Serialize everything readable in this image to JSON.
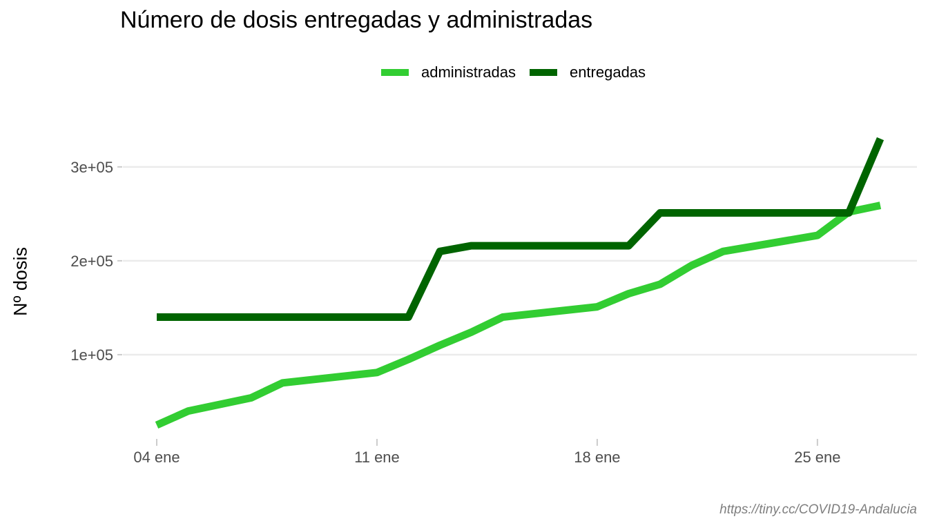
{
  "chart_data": {
    "type": "line",
    "title": "Número de dosis entregadas y administradas",
    "ylabel": "Nº dosis",
    "xlabel": "",
    "caption": "https://tiny.cc/COVID19-Andalucia",
    "legend_position": "top",
    "grid": "horizontal major gridlines",
    "x_ticks": [
      "04 ene",
      "11 ene",
      "18 ene",
      "25 ene"
    ],
    "y_ticks": [
      "1e+05",
      "2e+05",
      "3e+05"
    ],
    "y_tick_values": [
      100000,
      200000,
      300000
    ],
    "xlim": [
      "2021-01-04",
      "2021-01-27"
    ],
    "ylim": [
      25000,
      330000
    ],
    "series": [
      {
        "name": "administradas",
        "color": "#32cd32",
        "x": [
          "2021-01-04",
          "2021-01-05",
          "2021-01-07",
          "2021-01-08",
          "2021-01-11",
          "2021-01-12",
          "2021-01-13",
          "2021-01-14",
          "2021-01-15",
          "2021-01-18",
          "2021-01-19",
          "2021-01-20",
          "2021-01-21",
          "2021-01-22",
          "2021-01-25",
          "2021-01-26",
          "2021-01-27"
        ],
        "values": [
          25000,
          40000,
          54000,
          70000,
          81000,
          95000,
          110000,
          124000,
          140000,
          151000,
          165000,
          175000,
          195000,
          210000,
          227000,
          252000,
          259000
        ]
      },
      {
        "name": "entregadas",
        "color": "#006400",
        "x": [
          "2021-01-04",
          "2021-01-12",
          "2021-01-13",
          "2021-01-14",
          "2021-01-19",
          "2021-01-20",
          "2021-01-26",
          "2021-01-27"
        ],
        "values": [
          140000,
          140000,
          210000,
          216000,
          216000,
          251000,
          251000,
          330000
        ]
      }
    ]
  }
}
